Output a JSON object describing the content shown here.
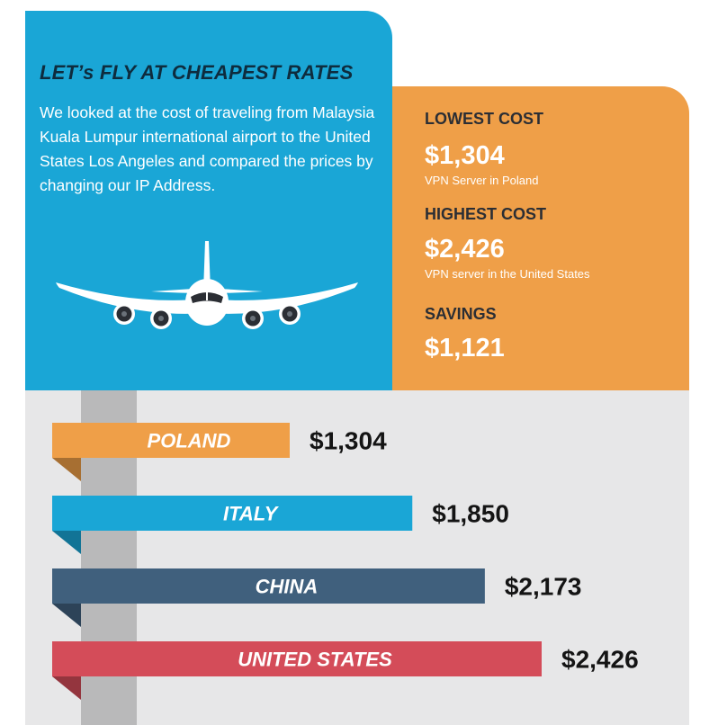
{
  "colors": {
    "blue": "#1aa6d6",
    "orange": "#ef9f48",
    "navy": "#40607d",
    "red": "#d44c59",
    "background": "#e7e7e8"
  },
  "header": {
    "title": "LET’s FLY AT CHEAPEST RATES",
    "description": "We looked at the cost of traveling from Malaysia Kuala Lumpur international airport to the United States Los Angeles and compared the prices by changing our IP Address.",
    "illustration": "airplane-icon"
  },
  "summary": {
    "lowest": {
      "label": "LOWEST COST",
      "value": "$1,304",
      "note": "VPN Server in Poland"
    },
    "highest": {
      "label": "HIGHEST COST",
      "value": "$2,426",
      "note": "VPN server in the United States"
    },
    "savings": {
      "label": "SAVINGS",
      "value": "$1,121"
    }
  },
  "chart_data": {
    "type": "bar",
    "orientation": "horizontal",
    "categories": [
      "POLAND",
      "ITALY",
      "CHINA",
      "UNITED STATES"
    ],
    "values": [
      1304,
      1850,
      2173,
      2426
    ],
    "value_labels": [
      "$1,304",
      "$1,850",
      "$2,173",
      "$2,426"
    ],
    "bar_colors": [
      "#ef9f48",
      "#1aa6d6",
      "#40607d",
      "#d44c59"
    ],
    "title": "",
    "xlabel": "",
    "ylabel": "",
    "xlim": [
      0,
      2426
    ],
    "grid": false,
    "legend": "none"
  }
}
